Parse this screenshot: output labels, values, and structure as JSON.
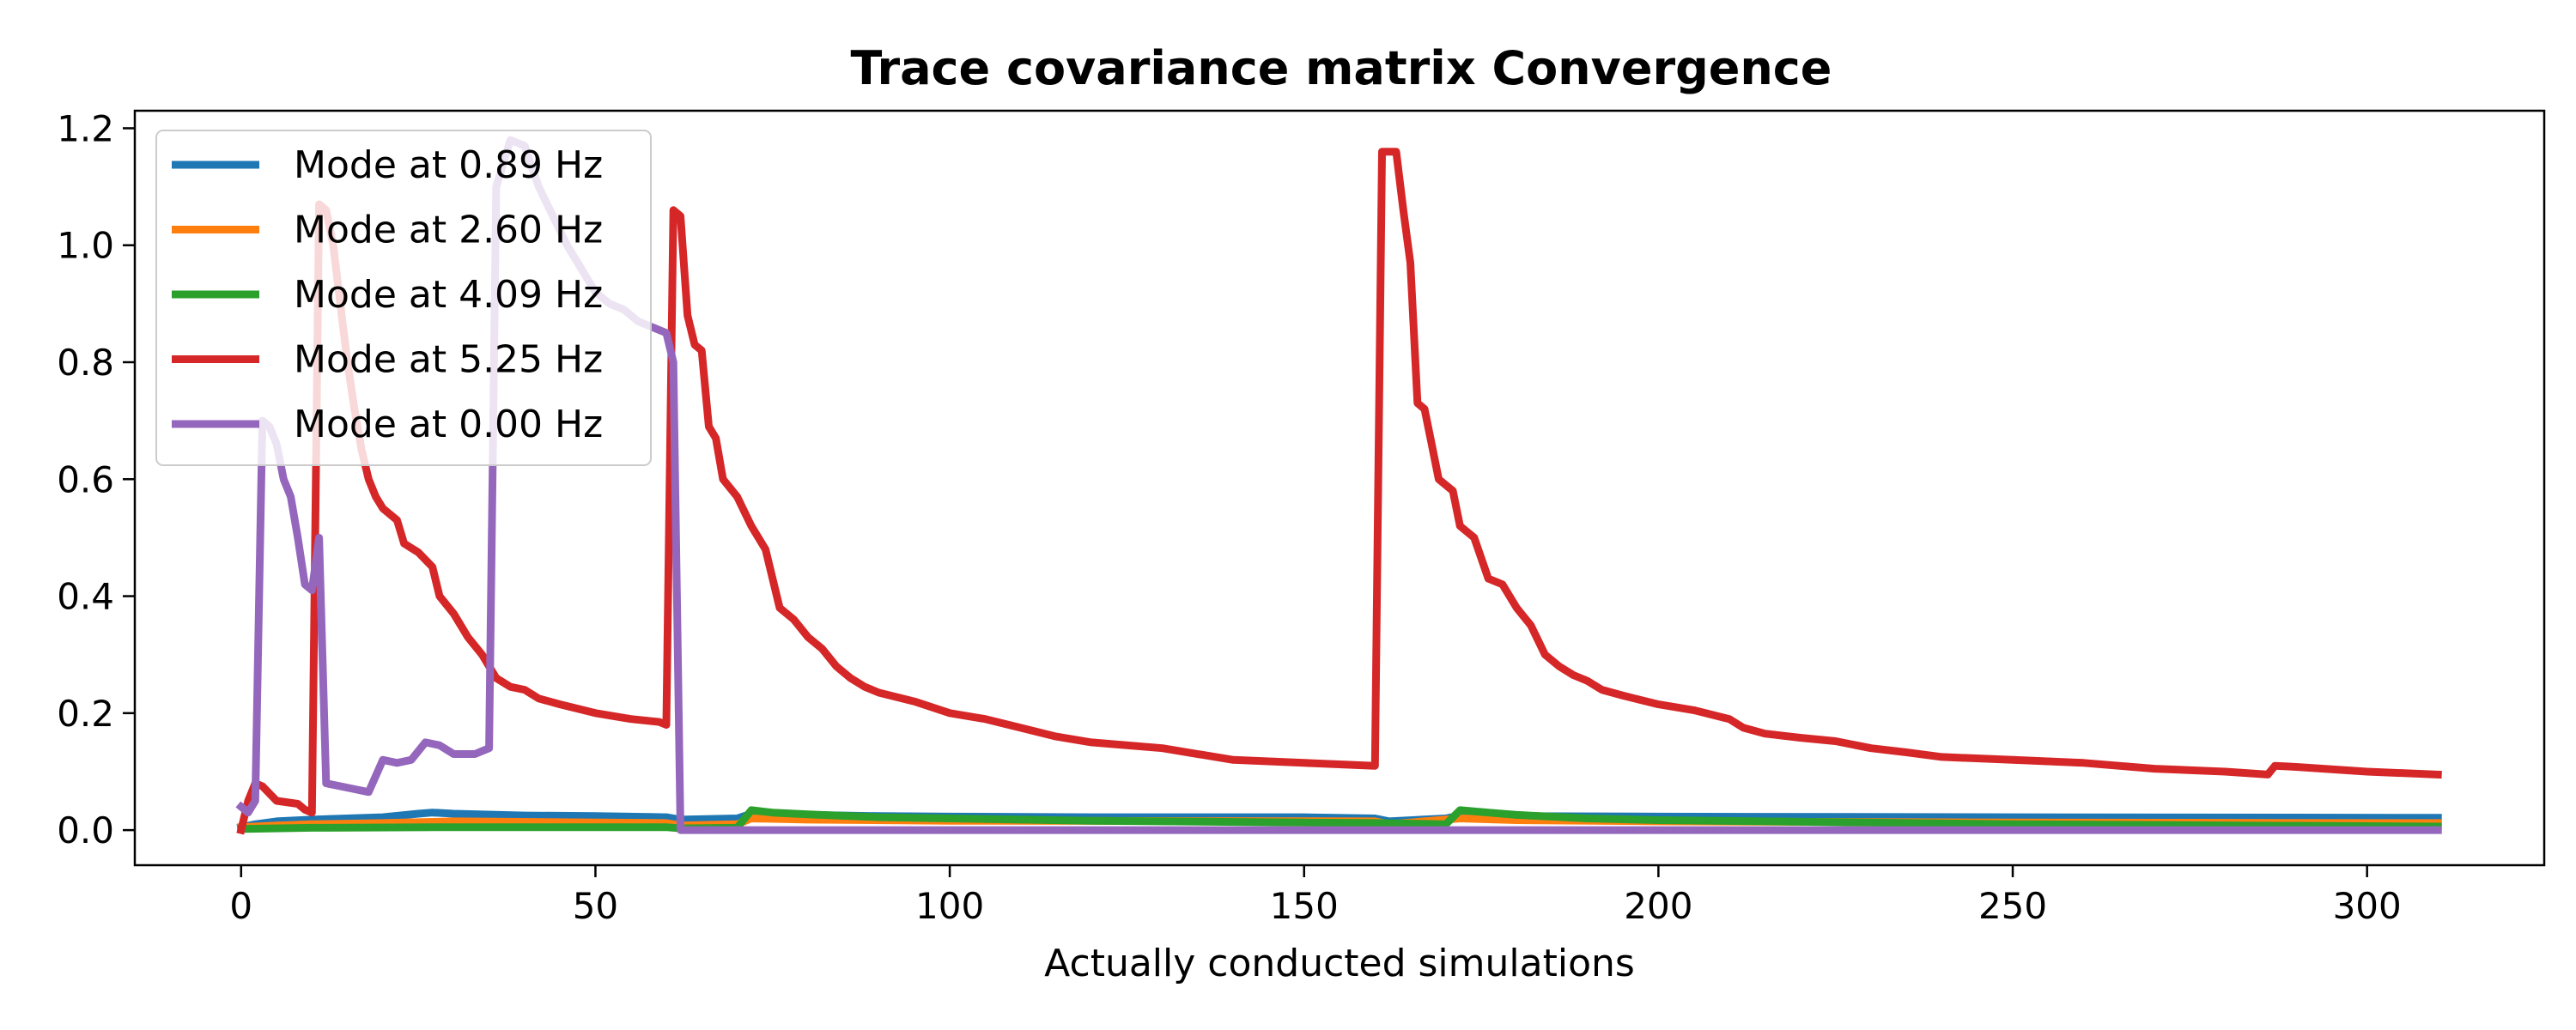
{
  "chart_data": {
    "type": "line",
    "title": "Trace covariance matrix Convergence",
    "xlabel": "Actually conducted simulations",
    "ylabel": "",
    "xlim": [
      -15,
      325
    ],
    "ylim": [
      -0.06,
      1.23
    ],
    "xticks": [
      0,
      50,
      100,
      150,
      200,
      250,
      300
    ],
    "yticks": [
      0.0,
      0.2,
      0.4,
      0.6,
      0.8,
      1.0,
      1.2
    ],
    "grid": false,
    "legend_position": "top-left",
    "series": [
      {
        "name": "Mode at 0.89 Hz",
        "color": "#1f77b4",
        "points": [
          [
            0,
            0.005
          ],
          [
            2,
            0.01
          ],
          [
            5,
            0.015
          ],
          [
            10,
            0.018
          ],
          [
            15,
            0.02
          ],
          [
            20,
            0.022
          ],
          [
            25,
            0.028
          ],
          [
            27,
            0.03
          ],
          [
            30,
            0.028
          ],
          [
            40,
            0.025
          ],
          [
            50,
            0.024
          ],
          [
            60,
            0.022
          ],
          [
            62,
            0.018
          ],
          [
            70,
            0.02
          ],
          [
            72,
            0.028
          ],
          [
            80,
            0.026
          ],
          [
            90,
            0.024
          ],
          [
            100,
            0.023
          ],
          [
            120,
            0.022
          ],
          [
            150,
            0.022
          ],
          [
            160,
            0.02
          ],
          [
            162,
            0.015
          ],
          [
            170,
            0.02
          ],
          [
            172,
            0.025
          ],
          [
            180,
            0.024
          ],
          [
            200,
            0.023
          ],
          [
            250,
            0.022
          ],
          [
            310,
            0.021
          ]
        ]
      },
      {
        "name": "Mode at 2.60 Hz",
        "color": "#ff7f0e",
        "points": [
          [
            0,
            0.005
          ],
          [
            5,
            0.008
          ],
          [
            10,
            0.01
          ],
          [
            20,
            0.012
          ],
          [
            30,
            0.015
          ],
          [
            60,
            0.012
          ],
          [
            62,
            0.008
          ],
          [
            70,
            0.01
          ],
          [
            72,
            0.02
          ],
          [
            80,
            0.018
          ],
          [
            100,
            0.016
          ],
          [
            160,
            0.015
          ],
          [
            162,
            0.01
          ],
          [
            172,
            0.02
          ],
          [
            180,
            0.017
          ],
          [
            200,
            0.015
          ],
          [
            250,
            0.013
          ],
          [
            310,
            0.012
          ]
        ]
      },
      {
        "name": "Mode at 4.09 Hz",
        "color": "#2ca02c",
        "points": [
          [
            0,
            0.002
          ],
          [
            10,
            0.004
          ],
          [
            30,
            0.005
          ],
          [
            60,
            0.005
          ],
          [
            62,
            0.003
          ],
          [
            70,
            0.004
          ],
          [
            72,
            0.034
          ],
          [
            75,
            0.03
          ],
          [
            80,
            0.027
          ],
          [
            90,
            0.022
          ],
          [
            100,
            0.02
          ],
          [
            120,
            0.016
          ],
          [
            150,
            0.013
          ],
          [
            160,
            0.012
          ],
          [
            170,
            0.01
          ],
          [
            172,
            0.034
          ],
          [
            176,
            0.03
          ],
          [
            180,
            0.026
          ],
          [
            190,
            0.02
          ],
          [
            200,
            0.017
          ],
          [
            250,
            0.01
          ],
          [
            310,
            0.006
          ]
        ]
      },
      {
        "name": "Mode at 5.25 Hz",
        "color": "#d62728",
        "points": [
          [
            0,
            0.0
          ],
          [
            1,
            0.05
          ],
          [
            2,
            0.08
          ],
          [
            3,
            0.075
          ],
          [
            5,
            0.05
          ],
          [
            8,
            0.045
          ],
          [
            9,
            0.035
          ],
          [
            10,
            0.03
          ],
          [
            11,
            1.07
          ],
          [
            12,
            1.06
          ],
          [
            13,
            1.0
          ],
          [
            14,
            0.9
          ],
          [
            15,
            0.8
          ],
          [
            16,
            0.72
          ],
          [
            17,
            0.65
          ],
          [
            18,
            0.6
          ],
          [
            19,
            0.57
          ],
          [
            20,
            0.55
          ],
          [
            22,
            0.53
          ],
          [
            23,
            0.49
          ],
          [
            25,
            0.475
          ],
          [
            27,
            0.45
          ],
          [
            28,
            0.4
          ],
          [
            30,
            0.37
          ],
          [
            32,
            0.33
          ],
          [
            34,
            0.3
          ],
          [
            36,
            0.26
          ],
          [
            38,
            0.245
          ],
          [
            40,
            0.24
          ],
          [
            42,
            0.225
          ],
          [
            45,
            0.215
          ],
          [
            50,
            0.2
          ],
          [
            55,
            0.19
          ],
          [
            59,
            0.185
          ],
          [
            60,
            0.18
          ],
          [
            61,
            1.06
          ],
          [
            62,
            1.05
          ],
          [
            63,
            0.88
          ],
          [
            64,
            0.83
          ],
          [
            65,
            0.82
          ],
          [
            66,
            0.69
          ],
          [
            67,
            0.67
          ],
          [
            68,
            0.6
          ],
          [
            70,
            0.57
          ],
          [
            72,
            0.52
          ],
          [
            74,
            0.48
          ],
          [
            76,
            0.38
          ],
          [
            78,
            0.36
          ],
          [
            80,
            0.33
          ],
          [
            82,
            0.31
          ],
          [
            84,
            0.28
          ],
          [
            86,
            0.26
          ],
          [
            88,
            0.245
          ],
          [
            90,
            0.235
          ],
          [
            95,
            0.22
          ],
          [
            100,
            0.2
          ],
          [
            105,
            0.19
          ],
          [
            110,
            0.175
          ],
          [
            115,
            0.16
          ],
          [
            120,
            0.15
          ],
          [
            130,
            0.14
          ],
          [
            140,
            0.12
          ],
          [
            150,
            0.115
          ],
          [
            160,
            0.11
          ],
          [
            161,
            1.16
          ],
          [
            163,
            1.16
          ],
          [
            164,
            1.06
          ],
          [
            165,
            0.97
          ],
          [
            166,
            0.73
          ],
          [
            167,
            0.72
          ],
          [
            168,
            0.66
          ],
          [
            169,
            0.6
          ],
          [
            170,
            0.59
          ],
          [
            171,
            0.58
          ],
          [
            172,
            0.52
          ],
          [
            174,
            0.5
          ],
          [
            176,
            0.43
          ],
          [
            178,
            0.42
          ],
          [
            180,
            0.38
          ],
          [
            182,
            0.35
          ],
          [
            184,
            0.3
          ],
          [
            186,
            0.28
          ],
          [
            188,
            0.265
          ],
          [
            190,
            0.255
          ],
          [
            192,
            0.24
          ],
          [
            195,
            0.23
          ],
          [
            200,
            0.215
          ],
          [
            205,
            0.205
          ],
          [
            210,
            0.19
          ],
          [
            212,
            0.175
          ],
          [
            215,
            0.165
          ],
          [
            220,
            0.158
          ],
          [
            225,
            0.152
          ],
          [
            230,
            0.14
          ],
          [
            235,
            0.133
          ],
          [
            240,
            0.125
          ],
          [
            250,
            0.12
          ],
          [
            260,
            0.115
          ],
          [
            270,
            0.105
          ],
          [
            280,
            0.1
          ],
          [
            286,
            0.095
          ],
          [
            287,
            0.11
          ],
          [
            290,
            0.108
          ],
          [
            300,
            0.1
          ],
          [
            310,
            0.095
          ]
        ]
      },
      {
        "name": "Mode at 0.00 Hz",
        "color": "#9467bd",
        "points": [
          [
            0,
            0.04
          ],
          [
            1,
            0.03
          ],
          [
            2,
            0.05
          ],
          [
            3,
            0.7
          ],
          [
            4,
            0.69
          ],
          [
            5,
            0.66
          ],
          [
            6,
            0.6
          ],
          [
            7,
            0.57
          ],
          [
            8,
            0.5
          ],
          [
            9,
            0.42
          ],
          [
            10,
            0.41
          ],
          [
            11,
            0.5
          ],
          [
            12,
            0.08
          ],
          [
            14,
            0.075
          ],
          [
            16,
            0.07
          ],
          [
            18,
            0.065
          ],
          [
            20,
            0.12
          ],
          [
            22,
            0.115
          ],
          [
            24,
            0.12
          ],
          [
            26,
            0.15
          ],
          [
            28,
            0.145
          ],
          [
            30,
            0.13
          ],
          [
            33,
            0.13
          ],
          [
            35,
            0.14
          ],
          [
            36,
            1.1
          ],
          [
            38,
            1.18
          ],
          [
            40,
            1.17
          ],
          [
            42,
            1.1
          ],
          [
            44,
            1.05
          ],
          [
            46,
            1.0
          ],
          [
            48,
            0.96
          ],
          [
            50,
            0.92
          ],
          [
            52,
            0.9
          ],
          [
            54,
            0.89
          ],
          [
            56,
            0.87
          ],
          [
            58,
            0.86
          ],
          [
            60,
            0.85
          ],
          [
            61,
            0.8
          ],
          [
            62,
            0.0
          ],
          [
            100,
            0.0
          ],
          [
            200,
            0.0
          ],
          [
            310,
            0.0
          ]
        ]
      }
    ]
  }
}
